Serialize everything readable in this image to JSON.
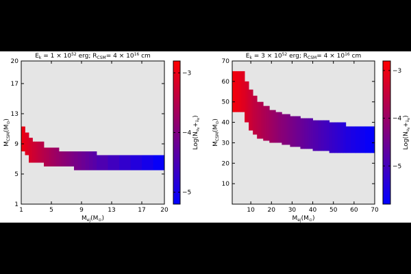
{
  "chart_data": [
    {
      "type": "heatmap",
      "title": "E_k = 1 × 10^52 erg; R_CSM= 4 × 10^16 cm",
      "title_parts": {
        "ek_prefix": "E",
        "ek_sub": "k",
        "ek_mid": " = 1 × 10",
        "ek_exp": "52",
        "r_prefix": " erg; R",
        "r_sub": "CSM",
        "r_mid": "= 4 × 10",
        "r_exp": "16",
        "r_suffix": " cm"
      },
      "xlabel": {
        "main": "M",
        "sub": "ej",
        "unit": "(M",
        "sun": "⊙",
        "close": ")"
      },
      "ylabel": {
        "main": "M",
        "sub": "CSM",
        "unit": "(M",
        "sun": "⊙",
        "close": ")"
      },
      "xlim": [
        1,
        20
      ],
      "ylim": [
        1,
        20
      ],
      "xticks": [
        1,
        5,
        9,
        13,
        17,
        20
      ],
      "yticks": [
        1,
        5,
        9,
        13,
        17,
        20
      ],
      "background": "#e5e5e5",
      "colormap": {
        "low": "#0000ff",
        "high": "#ff0000"
      },
      "colorbar": {
        "label": "Log(N",
        "label_sub": "ν",
        "label_sub2": "e",
        "label_mid": "+",
        "label_bar": "ν̄",
        "label_end": ")",
        "range": [
          -5.2,
          -2.8
        ],
        "ticks": [
          -3,
          -4,
          -5
        ],
        "tick_labels": [
          "−3",
          "−4",
          "−5"
        ]
      },
      "columns": [
        {
          "x0": 1.0,
          "x1": 1.5,
          "y0": 8.0,
          "y1": 11.3,
          "v0": -2.9,
          "v1": -3.05
        },
        {
          "x0": 1.5,
          "x1": 2.0,
          "y0": 7.5,
          "y1": 10.5,
          "v0": -3.05,
          "v1": -3.15
        },
        {
          "x0": 2.0,
          "x1": 2.5,
          "y0": 6.5,
          "y1": 9.8,
          "v0": -3.15,
          "v1": -3.25
        },
        {
          "x0": 2.5,
          "x1": 4.0,
          "y0": 6.5,
          "y1": 9.3,
          "v0": -3.25,
          "v1": -3.5
        },
        {
          "x0": 4.0,
          "x1": 6.0,
          "y0": 6.0,
          "y1": 8.5,
          "v0": -3.5,
          "v1": -3.8
        },
        {
          "x0": 6.0,
          "x1": 8.0,
          "y0": 6.0,
          "y1": 8.0,
          "v0": -3.8,
          "v1": -4.05
        },
        {
          "x0": 8.0,
          "x1": 11.0,
          "y0": 5.5,
          "y1": 8.0,
          "v0": -4.05,
          "v1": -4.4
        },
        {
          "x0": 11.0,
          "x1": 20.0,
          "y0": 5.5,
          "y1": 7.5,
          "v0": -4.4,
          "v1": -5.2
        }
      ]
    },
    {
      "type": "heatmap",
      "title": "E_k = 3 × 10^52 erg; R_CSM= 4 × 10^16 cm",
      "title_parts": {
        "ek_prefix": "E",
        "ek_sub": "k",
        "ek_mid": " = 3 × 10",
        "ek_exp": "52",
        "r_prefix": " erg; R",
        "r_sub": "CSM",
        "r_mid": "= 4 × 10",
        "r_exp": "16",
        "r_suffix": " cm"
      },
      "xlabel": {
        "main": "M",
        "sub": "ej",
        "unit": "(M",
        "sun": "⊙",
        "close": ")"
      },
      "ylabel": {
        "main": "M",
        "sub": "CSM",
        "unit": "(M",
        "sun": "⊙",
        "close": ")"
      },
      "xlim": [
        1,
        70
      ],
      "ylim": [
        0,
        70
      ],
      "xticks": [
        10,
        20,
        30,
        40,
        50,
        60,
        70
      ],
      "yticks": [
        10,
        20,
        30,
        40,
        50,
        60,
        70
      ],
      "background": "#e5e5e5",
      "colormap": {
        "low": "#0000ff",
        "high": "#ff0000"
      },
      "colorbar": {
        "label": "Log(N",
        "label_sub": "ν",
        "label_sub2": "e",
        "label_mid": "+",
        "label_bar": "ν̄",
        "label_end": ")",
        "range": [
          -5.8,
          -2.8
        ],
        "ticks": [
          -3,
          -4,
          -5
        ],
        "tick_labels": [
          "−3",
          "−4",
          "−5"
        ]
      },
      "columns": [
        {
          "x0": 1,
          "x1": 7,
          "y0": 45,
          "y1": 65,
          "v0": -2.9,
          "v1": -3.2
        },
        {
          "x0": 7,
          "x1": 9,
          "y0": 40,
          "y1": 60,
          "v0": -3.2,
          "v1": -3.35
        },
        {
          "x0": 9,
          "x1": 11,
          "y0": 36,
          "y1": 56,
          "v0": -3.35,
          "v1": -3.5
        },
        {
          "x0": 11,
          "x1": 13,
          "y0": 34,
          "y1": 53,
          "v0": -3.5,
          "v1": -3.6
        },
        {
          "x0": 13,
          "x1": 16,
          "y0": 32,
          "y1": 50,
          "v0": -3.6,
          "v1": -3.75
        },
        {
          "x0": 16,
          "x1": 19,
          "y0": 31,
          "y1": 48,
          "v0": -3.75,
          "v1": -3.9
        },
        {
          "x0": 19,
          "x1": 22,
          "y0": 30,
          "y1": 46,
          "v0": -3.9,
          "v1": -4.05
        },
        {
          "x0": 22,
          "x1": 25,
          "y0": 30,
          "y1": 45,
          "v0": -4.05,
          "v1": -4.2
        },
        {
          "x0": 25,
          "x1": 29,
          "y0": 29,
          "y1": 44,
          "v0": -4.2,
          "v1": -4.35
        },
        {
          "x0": 29,
          "x1": 34,
          "y0": 28,
          "y1": 43,
          "v0": -4.35,
          "v1": -4.55
        },
        {
          "x0": 34,
          "x1": 40,
          "y0": 27,
          "y1": 42,
          "v0": -4.55,
          "v1": -4.8
        },
        {
          "x0": 40,
          "x1": 48,
          "y0": 26,
          "y1": 41,
          "v0": -4.8,
          "v1": -5.1
        },
        {
          "x0": 48,
          "x1": 56,
          "y0": 25,
          "y1": 40,
          "v0": -5.1,
          "v1": -5.4
        },
        {
          "x0": 56,
          "x1": 70,
          "y0": 25,
          "y1": 38,
          "v0": -5.4,
          "v1": -5.8
        }
      ]
    }
  ]
}
